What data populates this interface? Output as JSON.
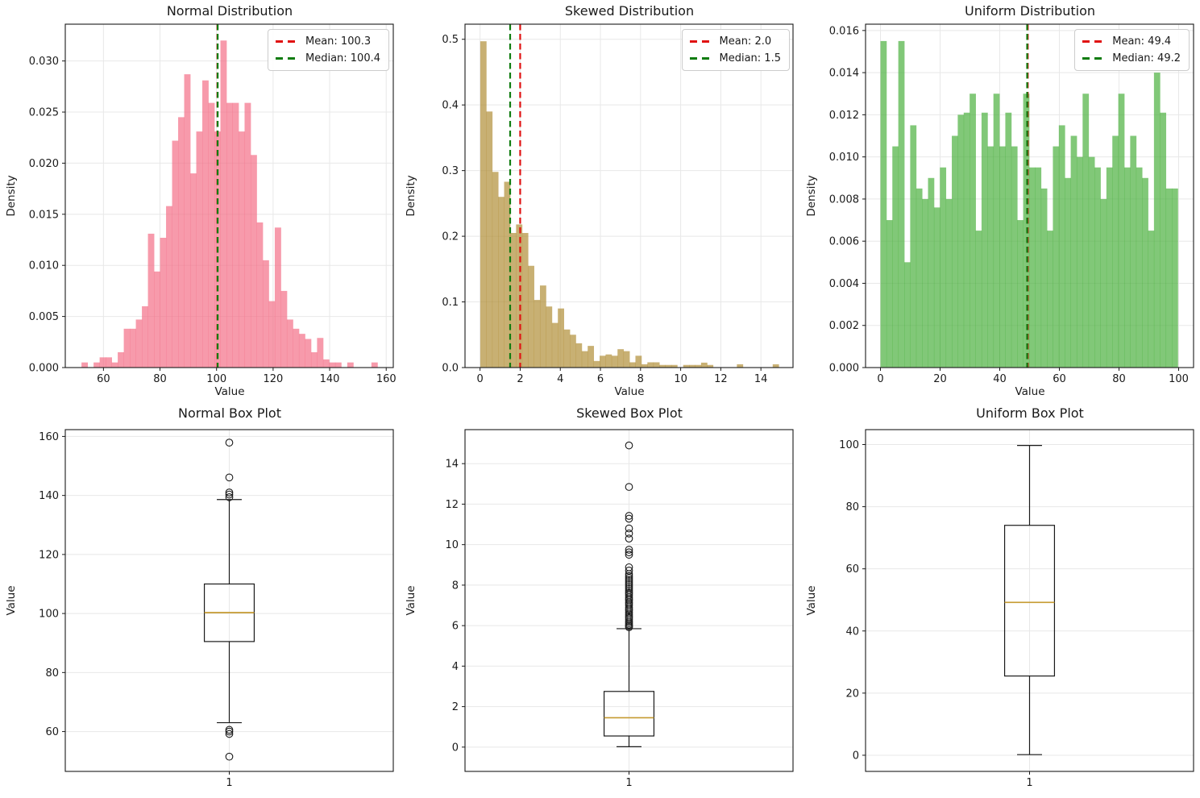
{
  "figure": {
    "background": "#ffffff",
    "grid_color": "#e8e8e8",
    "axis_color": "#1a1a1a"
  },
  "chart_data": [
    {
      "kind": "histogram",
      "title": "Normal Distribution",
      "xlabel": "Value",
      "ylabel": "Density",
      "color": "#F46F87",
      "fill_opacity": 0.7,
      "xlim": [
        46.5,
        162.5
      ],
      "ylim": [
        0,
        0.0336
      ],
      "xticks": {
        "values": [
          60,
          80,
          100,
          120,
          140,
          160
        ],
        "labels": [
          "60",
          "80",
          "100",
          "120",
          "140",
          "160"
        ]
      },
      "yticks": {
        "values": [
          0,
          0.005,
          0.01,
          0.015,
          0.02,
          0.025,
          0.03
        ],
        "labels": [
          "0.000",
          "0.005",
          "0.010",
          "0.015",
          "0.020",
          "0.025",
          "0.030"
        ]
      },
      "hist": {
        "x0": 50.1,
        "bin_width": 2.136,
        "heights": [
          0,
          0.0005,
          0,
          0.0005,
          0.001,
          0.001,
          0.0005,
          0.0015,
          0.0038,
          0.0038,
          0.0047,
          0.006,
          0.0131,
          0.0094,
          0.0127,
          0.0158,
          0.0222,
          0.0245,
          0.0287,
          0.019,
          0.0231,
          0.0281,
          0.0259,
          0.0231,
          0.032,
          0.0259,
          0.0259,
          0.0231,
          0.0259,
          0.0208,
          0.0142,
          0.0105,
          0.0065,
          0.0137,
          0.0075,
          0.0047,
          0.0038,
          0.0033,
          0.0028,
          0.0015,
          0.0029,
          0.0008,
          0.0005,
          0.0005,
          0,
          0.0005,
          0,
          0,
          0,
          0.0005
        ]
      },
      "mean": {
        "value": 100.3,
        "label": "Mean: 100.3",
        "color": "#e01212"
      },
      "median": {
        "value": 100.4,
        "label": "Median: 100.4",
        "color": "#107c10"
      }
    },
    {
      "kind": "histogram",
      "title": "Skewed Distribution",
      "xlabel": "Value",
      "ylabel": "Density",
      "color": "#B08F37",
      "fill_opacity": 0.7,
      "xlim": [
        -0.75,
        15.6
      ],
      "ylim": [
        0,
        0.523
      ],
      "xticks": {
        "values": [
          0,
          2,
          4,
          6,
          8,
          10,
          12,
          14
        ],
        "labels": [
          "0",
          "2",
          "4",
          "6",
          "8",
          "10",
          "12",
          "14"
        ]
      },
      "yticks": {
        "values": [
          0,
          0.1,
          0.2,
          0.3,
          0.4,
          0.5
        ],
        "labels": [
          "0.0",
          "0.1",
          "0.2",
          "0.3",
          "0.4",
          "0.5"
        ]
      },
      "hist": {
        "x0": 0.01,
        "bin_width": 0.2975,
        "heights": [
          0.497,
          0.39,
          0.298,
          0.26,
          0.283,
          0.205,
          0.218,
          0.205,
          0.155,
          0.103,
          0.125,
          0.093,
          0.068,
          0.09,
          0.058,
          0.05,
          0.037,
          0.025,
          0.033,
          0.01,
          0.018,
          0.02,
          0.018,
          0.028,
          0.025,
          0.008,
          0.018,
          0.005,
          0.008,
          0.008,
          0.004,
          0.004,
          0.004,
          0,
          0.004,
          0.004,
          0.004,
          0.0075,
          0.004,
          0,
          0,
          0,
          0,
          0.005,
          0,
          0,
          0,
          0,
          0,
          0.005
        ]
      },
      "mean": {
        "value": 2.0,
        "label": "Mean: 2.0",
        "color": "#e01212"
      },
      "median": {
        "value": 1.5,
        "label": "Median: 1.5",
        "color": "#107c10"
      }
    },
    {
      "kind": "histogram",
      "title": "Uniform Distribution",
      "xlabel": "Value",
      "ylabel": "Density",
      "color": "#4CB03E",
      "fill_opacity": 0.7,
      "xlim": [
        -5,
        105
      ],
      "ylim": [
        0,
        0.0163
      ],
      "xticks": {
        "values": [
          0,
          20,
          40,
          60,
          80,
          100
        ],
        "labels": [
          "0",
          "20",
          "40",
          "60",
          "80",
          "100"
        ]
      },
      "yticks": {
        "values": [
          0,
          0.002,
          0.004,
          0.006,
          0.008,
          0.01,
          0.012,
          0.014,
          0.016
        ],
        "labels": [
          "0.000",
          "0.002",
          "0.004",
          "0.006",
          "0.008",
          "0.010",
          "0.012",
          "0.014",
          "0.016"
        ]
      },
      "hist": {
        "x0": 0,
        "bin_width": 1.994,
        "heights": [
          0.0155,
          0.007,
          0.0105,
          0.0155,
          0.005,
          0.0115,
          0.0085,
          0.008,
          0.009,
          0.0076,
          0.0095,
          0.008,
          0.011,
          0.012,
          0.0121,
          0.013,
          0.0065,
          0.0121,
          0.0105,
          0.013,
          0.0105,
          0.0121,
          0.0105,
          0.007,
          0.013,
          0.0095,
          0.0095,
          0.0085,
          0.0065,
          0.0105,
          0.0115,
          0.009,
          0.011,
          0.01,
          0.013,
          0.01,
          0.0095,
          0.008,
          0.0095,
          0.011,
          0.013,
          0.0095,
          0.011,
          0.0095,
          0.009,
          0.0065,
          0.014,
          0.0121,
          0.0085,
          0.0085
        ]
      },
      "mean": {
        "value": 49.4,
        "label": "Mean: 49.4",
        "color": "#e01212"
      },
      "median": {
        "value": 49.2,
        "label": "Median: 49.2",
        "color": "#107c10"
      }
    },
    {
      "kind": "boxplot",
      "title": "Normal Box Plot",
      "ylabel": "Value",
      "xlim": [
        0,
        2
      ],
      "ylim": [
        46.5,
        162.3
      ],
      "xticks": {
        "values": [
          1
        ],
        "labels": [
          "1"
        ]
      },
      "yticks": {
        "values": [
          60,
          80,
          100,
          120,
          140,
          160
        ],
        "labels": [
          "60",
          "80",
          "100",
          "120",
          "140",
          "160"
        ]
      },
      "box": {
        "center": 1,
        "q1": 90.5,
        "median": 100.3,
        "q3": 110,
        "whisker_low": 63,
        "whisker_high": 138.6,
        "outliers": [
          51.5,
          59.2,
          60.0,
          60.6,
          139.4,
          140.3,
          141.0,
          146.1,
          157.9
        ],
        "median_color": "#C59A30"
      }
    },
    {
      "kind": "boxplot",
      "title": "Skewed Box Plot",
      "ylabel": "Value",
      "xlim": [
        0,
        2
      ],
      "ylim": [
        -1.2,
        15.68
      ],
      "xticks": {
        "values": [
          1
        ],
        "labels": [
          "1"
        ]
      },
      "yticks": {
        "values": [
          0,
          2,
          4,
          6,
          8,
          10,
          12,
          14
        ],
        "labels": [
          "0",
          "2",
          "4",
          "6",
          "8",
          "10",
          "12",
          "14"
        ]
      },
      "box": {
        "center": 1,
        "q1": 0.55,
        "median": 1.45,
        "q3": 2.75,
        "whisker_low": 0.02,
        "whisker_high": 5.85,
        "outliers": [
          5.92,
          5.98,
          6.05,
          6.12,
          6.2,
          6.3,
          6.38,
          6.45,
          6.55,
          6.65,
          6.75,
          6.82,
          6.9,
          7.0,
          7.08,
          7.15,
          7.25,
          7.32,
          7.4,
          7.5,
          7.58,
          7.65,
          7.75,
          7.85,
          7.95,
          8.05,
          8.15,
          8.25,
          8.35,
          8.45,
          8.55,
          8.72,
          8.88,
          9.5,
          9.62,
          9.75,
          10.3,
          10.55,
          10.8,
          11.28,
          11.42,
          12.85,
          14.9
        ],
        "median_color": "#C59A30"
      }
    },
    {
      "kind": "boxplot",
      "title": "Uniform Box Plot",
      "ylabel": "Value",
      "xlim": [
        0,
        2
      ],
      "ylim": [
        -5.2,
        104.8
      ],
      "xticks": {
        "values": [
          1
        ],
        "labels": [
          "1"
        ]
      },
      "yticks": {
        "values": [
          0,
          20,
          40,
          60,
          80,
          100
        ],
        "labels": [
          "0",
          "20",
          "40",
          "60",
          "80",
          "100"
        ]
      },
      "box": {
        "center": 1,
        "q1": 25.5,
        "median": 49.2,
        "q3": 74,
        "whisker_low": 0.2,
        "whisker_high": 99.7,
        "outliers": [],
        "median_color": "#C59A30"
      }
    }
  ]
}
